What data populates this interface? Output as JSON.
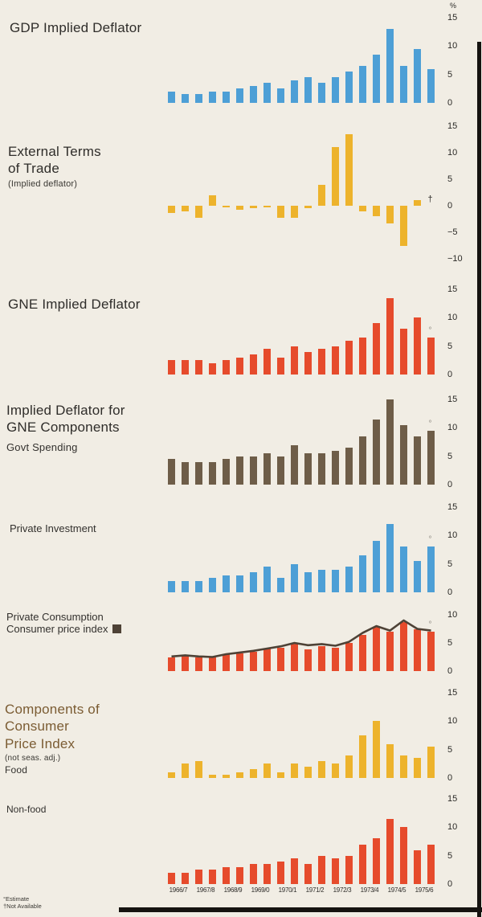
{
  "page": {
    "percent_symbol": "%",
    "footnotes": [
      {
        "symbol": "°",
        "label": "Estimate"
      },
      {
        "symbol": "†",
        "label": "Not Available"
      }
    ],
    "x_axis_labels": [
      "1966/7",
      "1967/8",
      "1968/9",
      "1969/0",
      "1970/1",
      "1971/2",
      "1972/3",
      "1973/4",
      "1974/5",
      "1975/6"
    ]
  },
  "chart_data": [
    {
      "id": "gdp-implied-deflator",
      "type": "bar",
      "title": "GDP Implied Deflator",
      "color": "#4d9fd6",
      "ylim": [
        0,
        15
      ],
      "ticks": [
        0,
        5,
        10,
        15
      ],
      "values": [
        2,
        1.5,
        1.5,
        2,
        2,
        2.5,
        3,
        3.5,
        2.5,
        4,
        4.5,
        3.5,
        4.5,
        5.5,
        6.5,
        8.5,
        13,
        6.5,
        9.5,
        6
      ]
    },
    {
      "id": "external-terms-of-trade",
      "type": "bar",
      "title_lines": [
        "External Terms",
        "of Trade"
      ],
      "subtitle": "(Implied deflator)",
      "color": "#edb32c",
      "ylim": [
        -10,
        15
      ],
      "ticks": [
        -10,
        -5,
        0,
        5,
        10,
        15
      ],
      "values": [
        -1.3,
        -1,
        -2.3,
        2,
        -0.3,
        -0.8,
        -0.5,
        -0.3,
        -2.3,
        -2.3,
        -0.5,
        4,
        11,
        13.5,
        -1,
        -2,
        -3.3,
        -7.5,
        1,
        null
      ],
      "na_last": true
    },
    {
      "id": "gne-implied-deflator",
      "type": "bar",
      "title": "GNE Implied Deflator",
      "color": "#e64b2c",
      "ylim": [
        0,
        15
      ],
      "ticks": [
        0,
        5,
        10,
        15
      ],
      "values": [
        2.5,
        2.5,
        2.5,
        2,
        2.5,
        3,
        3.5,
        4.5,
        3,
        5,
        4,
        4.5,
        5,
        6,
        6.5,
        9,
        13.5,
        8,
        10,
        6.5
      ],
      "estimate_last": true
    },
    {
      "id": "govt-spending-deflator",
      "type": "bar",
      "title_lines": [
        "Implied Deflator for",
        "GNE Components"
      ],
      "label": "Govt Spending",
      "color": "#6e5d48",
      "ylim": [
        0,
        15
      ],
      "ticks": [
        0,
        5,
        10,
        15
      ],
      "values": [
        4.5,
        4,
        4,
        4,
        4.5,
        5,
        5,
        5.5,
        5,
        7,
        5.5,
        5.5,
        6,
        6.5,
        8.5,
        11.5,
        15,
        10.5,
        8.5,
        9.5
      ],
      "estimate_last": true
    },
    {
      "id": "private-investment-deflator",
      "type": "bar",
      "title": "Private Investment",
      "color": "#4d9fd6",
      "ylim": [
        0,
        15
      ],
      "ticks": [
        0,
        5,
        10,
        15
      ],
      "values": [
        2,
        2,
        2,
        2.5,
        3,
        3,
        3.5,
        4.5,
        2.5,
        5,
        3.5,
        4,
        4,
        4.5,
        6.5,
        9,
        12,
        8,
        5.5,
        8
      ],
      "estimate_last": true
    },
    {
      "id": "private-consumption-deflator",
      "type": "bar-line",
      "title": "Private Consumption",
      "legend": "Consumer price index",
      "color": "#e64b2c",
      "line_color": "#4e4236",
      "ylim": [
        0,
        10
      ],
      "ticks": [
        0,
        5,
        10
      ],
      "values": [
        2.5,
        2.8,
        2.5,
        2.5,
        3,
        3.2,
        3.5,
        4,
        4.2,
        5,
        3.8,
        4.5,
        4.2,
        5,
        6.5,
        7.8,
        7,
        8.7,
        7.5,
        7
      ],
      "line_values": [
        2.6,
        2.8,
        2.6,
        2.5,
        3,
        3.3,
        3.6,
        4,
        4.4,
        5,
        4.6,
        4.8,
        4.5,
        5.2,
        6.8,
        8,
        7.2,
        9,
        7.5,
        7.2
      ],
      "estimate_last": true
    },
    {
      "id": "cpi-food",
      "type": "bar",
      "title_lines": [
        "Components of",
        "Consumer",
        "Price Index"
      ],
      "subtitle": "(not seas. adj.)",
      "label": "Food",
      "color": "#edb32c",
      "ylim": [
        0,
        15
      ],
      "ticks": [
        0,
        5,
        10,
        15
      ],
      "values": [
        1,
        2.5,
        3,
        0.5,
        0.5,
        1,
        1.5,
        2.5,
        1,
        2.5,
        2,
        3,
        2.5,
        4,
        7.5,
        10,
        6,
        4,
        3.5,
        5.5
      ]
    },
    {
      "id": "cpi-non-food",
      "type": "bar",
      "label": "Non-food",
      "color": "#e64b2c",
      "ylim": [
        0,
        15
      ],
      "ticks": [
        0,
        5,
        10,
        15
      ],
      "values": [
        2,
        2,
        2.5,
        2.5,
        3,
        3,
        3.5,
        3.5,
        4,
        4.5,
        3.5,
        5,
        4.5,
        5,
        7,
        8,
        11.5,
        10,
        6,
        7
      ]
    }
  ]
}
